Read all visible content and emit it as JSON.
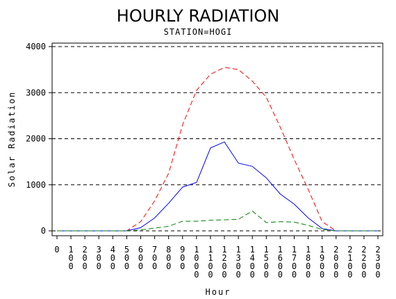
{
  "chart_data": {
    "type": "line",
    "title": "HOURLY RADIATION",
    "subtitle": "STATION=HOGI",
    "xlabel": "Hour",
    "ylabel": "Solar Radiation",
    "x": [
      0,
      100,
      200,
      300,
      400,
      500,
      600,
      700,
      800,
      900,
      1000,
      1100,
      1200,
      1300,
      1400,
      1500,
      1600,
      1700,
      1800,
      1900,
      2000,
      2100,
      2200,
      2300
    ],
    "x_tick_labels": [
      "0",
      "100",
      "200",
      "300",
      "400",
      "500",
      "600",
      "700",
      "800",
      "900",
      "1000",
      "1100",
      "1200",
      "1300",
      "1400",
      "1500",
      "1600",
      "1700",
      "1800",
      "1900",
      "2000",
      "2100",
      "2200",
      "2300"
    ],
    "y_ticks": [
      0,
      1000,
      2000,
      3000,
      4000
    ],
    "ylim": [
      0,
      4000
    ],
    "grid": "horizontal dashed",
    "series": [
      {
        "color": "#ff0000",
        "style": "dashed",
        "values": [
          0,
          0,
          0,
          0,
          0,
          0,
          200,
          650,
          1250,
          2300,
          3050,
          3400,
          3550,
          3500,
          3250,
          2900,
          2250,
          1550,
          900,
          200,
          0,
          0,
          0,
          0
        ]
      },
      {
        "color": "#0000ff",
        "style": "solid",
        "values": [
          0,
          0,
          0,
          0,
          0,
          0,
          70,
          280,
          600,
          950,
          1050,
          1800,
          1930,
          1470,
          1400,
          1150,
          800,
          580,
          280,
          50,
          0,
          0,
          0,
          0
        ]
      },
      {
        "color": "#008000",
        "style": "dashed",
        "values": [
          0,
          0,
          0,
          0,
          0,
          0,
          20,
          60,
          100,
          210,
          210,
          230,
          240,
          250,
          430,
          180,
          200,
          190,
          120,
          30,
          0,
          0,
          0,
          0
        ]
      }
    ]
  }
}
